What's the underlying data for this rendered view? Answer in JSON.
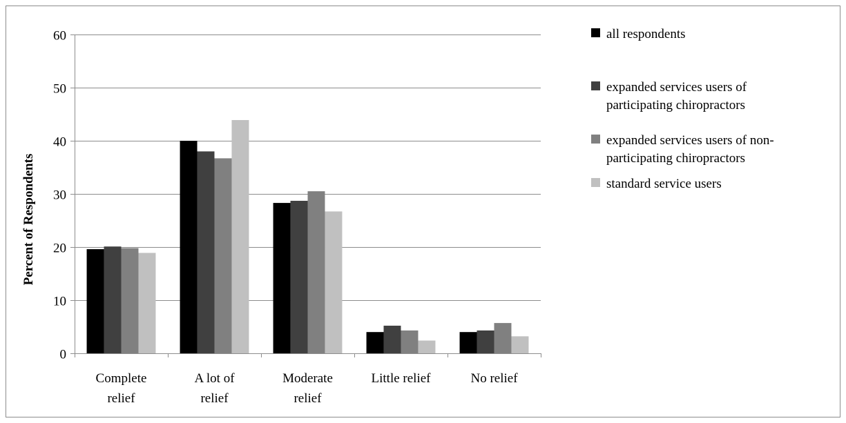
{
  "chart_data": {
    "type": "bar",
    "title": "",
    "xlabel": "",
    "ylabel": "Percent of Respondents",
    "ylim": [
      0,
      60
    ],
    "yticks": [
      "0",
      "10",
      "20",
      "30",
      "40",
      "50",
      "60"
    ],
    "grid": true,
    "legend_position": "right",
    "categories": [
      [
        "Complete",
        "relief"
      ],
      [
        "A lot of",
        "relief"
      ],
      [
        "Moderate",
        "relief"
      ],
      [
        "Little relief"
      ],
      [
        "No relief"
      ]
    ],
    "series": [
      {
        "name": [
          "all respondents"
        ],
        "color": "#000000",
        "values": [
          19.6,
          40.0,
          28.3,
          4.0,
          4.0
        ]
      },
      {
        "name": [
          "expanded services users of",
          "participating chiropractors"
        ],
        "color": "#404040",
        "values": [
          20.1,
          38.0,
          28.7,
          5.2,
          4.3
        ]
      },
      {
        "name": [
          "expanded services users of non-",
          "participating chiropractors"
        ],
        "color": "#808080",
        "values": [
          19.8,
          36.7,
          30.5,
          4.3,
          5.7
        ]
      },
      {
        "name": [
          "standard service users"
        ],
        "color": "#c0c0c0",
        "values": [
          18.9,
          43.9,
          26.7,
          2.4,
          3.2
        ]
      }
    ]
  }
}
